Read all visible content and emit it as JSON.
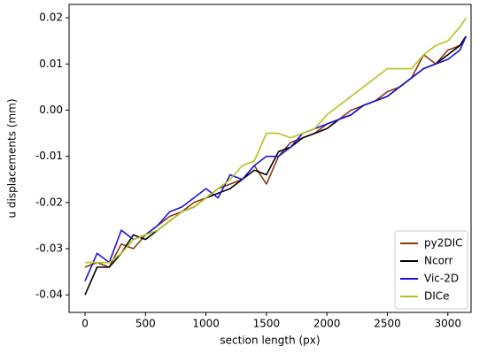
{
  "chart_data": {
    "type": "line",
    "xlabel": "section length (px)",
    "ylabel": "u displacements (mm)",
    "x": [
      0,
      100,
      200,
      300,
      400,
      500,
      600,
      700,
      800,
      900,
      1000,
      1100,
      1200,
      1300,
      1400,
      1500,
      1600,
      1700,
      1800,
      1900,
      2000,
      2100,
      2200,
      2300,
      2400,
      2500,
      2600,
      2700,
      2800,
      2900,
      3000,
      3100,
      3150
    ],
    "series": [
      {
        "name": "py2DIC",
        "color": "#8b3a12",
        "values": [
          -0.034,
          -0.033,
          -0.034,
          -0.029,
          -0.03,
          -0.027,
          -0.025,
          -0.023,
          -0.022,
          -0.02,
          -0.019,
          -0.017,
          -0.016,
          -0.015,
          -0.012,
          -0.016,
          -0.01,
          -0.007,
          -0.006,
          -0.005,
          -0.003,
          -0.002,
          0.0,
          0.001,
          0.002,
          0.004,
          0.005,
          0.007,
          0.012,
          0.01,
          0.013,
          0.014,
          0.016
        ]
      },
      {
        "name": "Ncorr",
        "color": "#000000",
        "values": [
          -0.04,
          -0.034,
          -0.034,
          -0.031,
          -0.027,
          -0.028,
          -0.026,
          -0.024,
          -0.022,
          -0.021,
          -0.019,
          -0.018,
          -0.017,
          -0.015,
          -0.013,
          -0.014,
          -0.009,
          -0.008,
          -0.006,
          -0.005,
          -0.004,
          -0.002,
          -0.001,
          0.001,
          0.002,
          0.003,
          0.005,
          0.007,
          0.009,
          0.01,
          0.012,
          0.014,
          0.016
        ]
      },
      {
        "name": "Vic-2D",
        "color": "#1c14d8",
        "values": [
          -0.037,
          -0.031,
          -0.033,
          -0.026,
          -0.028,
          -0.027,
          -0.025,
          -0.022,
          -0.021,
          -0.019,
          -0.017,
          -0.019,
          -0.014,
          -0.015,
          -0.012,
          -0.01,
          -0.01,
          -0.008,
          -0.005,
          -0.004,
          -0.003,
          -0.002,
          -0.001,
          0.001,
          0.002,
          0.003,
          0.005,
          0.007,
          0.009,
          0.01,
          0.011,
          0.013,
          0.016
        ]
      },
      {
        "name": "DICe",
        "color": "#b8c21e",
        "values": [
          -0.033,
          -0.033,
          -0.033,
          -0.031,
          -0.028,
          -0.027,
          -0.026,
          -0.024,
          -0.022,
          -0.021,
          -0.019,
          -0.017,
          -0.015,
          -0.012,
          -0.011,
          -0.005,
          -0.005,
          -0.006,
          -0.005,
          -0.004,
          -0.001,
          0.001,
          0.003,
          0.005,
          0.007,
          0.009,
          0.009,
          0.009,
          0.012,
          0.014,
          0.015,
          0.018,
          0.02
        ]
      }
    ],
    "xlim": [
      -132,
      3192
    ],
    "xticks": [
      0,
      500,
      1000,
      1500,
      2000,
      2500,
      3000
    ],
    "ylim": [
      -0.0438,
      0.0229
    ],
    "yticks": [
      -0.04,
      -0.03,
      -0.02,
      -0.01,
      {
        "value": 0,
        "label": "0.00"
      },
      0.01,
      0.02
    ],
    "legend": "lower right"
  }
}
